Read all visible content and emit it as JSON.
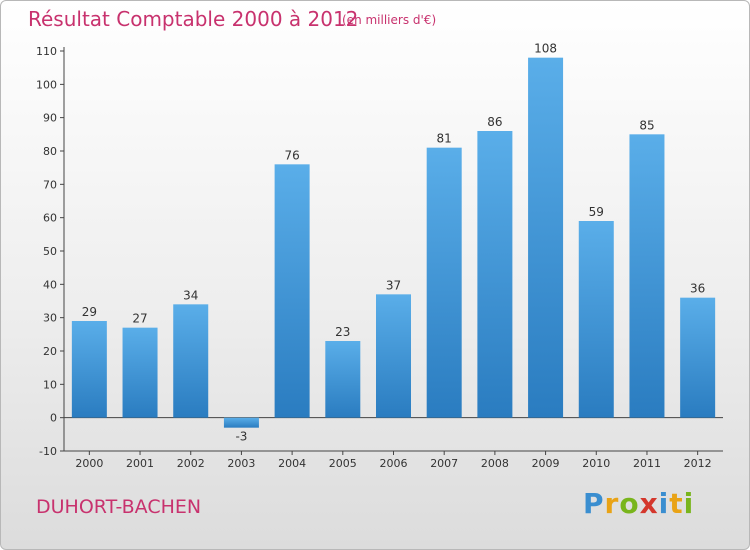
{
  "title": "Résultat Comptable 2000 à 2012",
  "subtitle": "(en milliers d'€)",
  "commune": "DUHORT-BACHEN",
  "logo": "Proxiti",
  "colors": {
    "accent": "#c8326e",
    "bar": "#3d9ce0",
    "axis": "#333333"
  },
  "chart_data": {
    "type": "bar",
    "title": "Résultat Comptable 2000 à 2012",
    "subtitle": "(en milliers d'€)",
    "xlabel": "",
    "ylabel": "",
    "categories": [
      "2000",
      "2001",
      "2002",
      "2003",
      "2004",
      "2005",
      "2006",
      "2007",
      "2008",
      "2009",
      "2010",
      "2011",
      "2012"
    ],
    "values": [
      29,
      27,
      34,
      -3,
      76,
      23,
      37,
      81,
      86,
      108,
      59,
      85,
      36
    ],
    "ylim": [
      -10,
      110
    ],
    "yticks": [
      -10,
      0,
      10,
      20,
      30,
      40,
      50,
      60,
      70,
      80,
      90,
      100,
      110
    ],
    "grid": false,
    "legend": "none"
  }
}
